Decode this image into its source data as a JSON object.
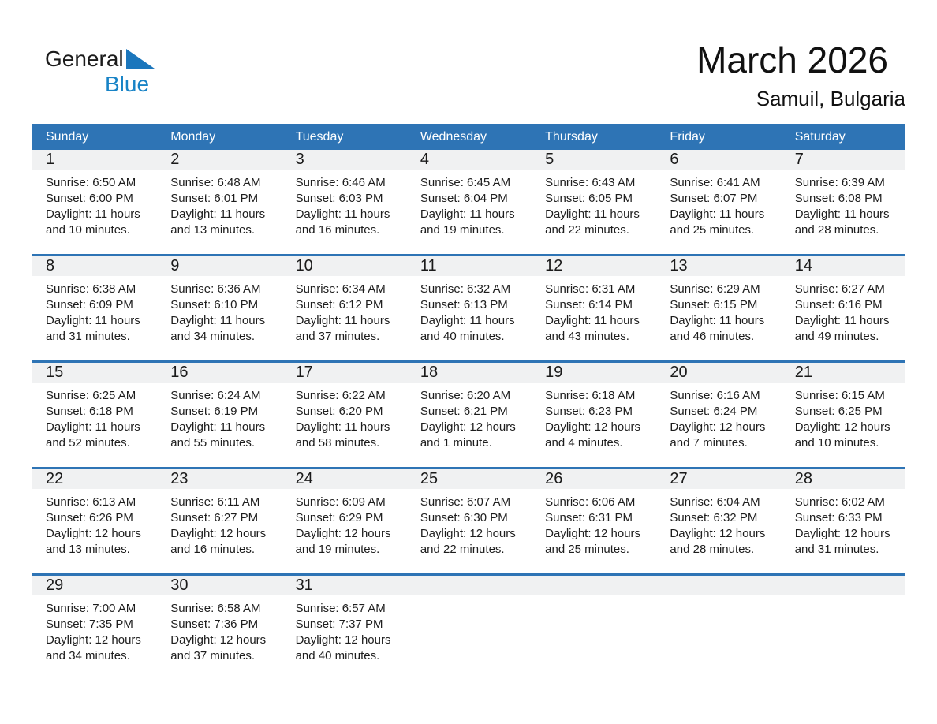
{
  "logo": {
    "general": "General",
    "blue": "Blue"
  },
  "header": {
    "title": "March 2026",
    "subtitle": "Samuil, Bulgaria"
  },
  "colors": {
    "header_blue": "#2E74B5",
    "divider_blue": "#2E74B5",
    "band_gray": "#F0F1F2",
    "logo_blue": "#1883C6",
    "logo_triangle_blue": "#1B76BC"
  },
  "calendar": {
    "day_names": [
      "Sunday",
      "Monday",
      "Tuesday",
      "Wednesday",
      "Thursday",
      "Friday",
      "Saturday"
    ],
    "weeks": [
      [
        {
          "day": "1",
          "sunrise": "Sunrise: 6:50 AM",
          "sunset": "Sunset: 6:00 PM",
          "daylight": "Daylight: 11 hours and 10 minutes."
        },
        {
          "day": "2",
          "sunrise": "Sunrise: 6:48 AM",
          "sunset": "Sunset: 6:01 PM",
          "daylight": "Daylight: 11 hours and 13 minutes."
        },
        {
          "day": "3",
          "sunrise": "Sunrise: 6:46 AM",
          "sunset": "Sunset: 6:03 PM",
          "daylight": "Daylight: 11 hours and 16 minutes."
        },
        {
          "day": "4",
          "sunrise": "Sunrise: 6:45 AM",
          "sunset": "Sunset: 6:04 PM",
          "daylight": "Daylight: 11 hours and 19 minutes."
        },
        {
          "day": "5",
          "sunrise": "Sunrise: 6:43 AM",
          "sunset": "Sunset: 6:05 PM",
          "daylight": "Daylight: 11 hours and 22 minutes."
        },
        {
          "day": "6",
          "sunrise": "Sunrise: 6:41 AM",
          "sunset": "Sunset: 6:07 PM",
          "daylight": "Daylight: 11 hours and 25 minutes."
        },
        {
          "day": "7",
          "sunrise": "Sunrise: 6:39 AM",
          "sunset": "Sunset: 6:08 PM",
          "daylight": "Daylight: 11 hours and 28 minutes."
        }
      ],
      [
        {
          "day": "8",
          "sunrise": "Sunrise: 6:38 AM",
          "sunset": "Sunset: 6:09 PM",
          "daylight": "Daylight: 11 hours and 31 minutes."
        },
        {
          "day": "9",
          "sunrise": "Sunrise: 6:36 AM",
          "sunset": "Sunset: 6:10 PM",
          "daylight": "Daylight: 11 hours and 34 minutes."
        },
        {
          "day": "10",
          "sunrise": "Sunrise: 6:34 AM",
          "sunset": "Sunset: 6:12 PM",
          "daylight": "Daylight: 11 hours and 37 minutes."
        },
        {
          "day": "11",
          "sunrise": "Sunrise: 6:32 AM",
          "sunset": "Sunset: 6:13 PM",
          "daylight": "Daylight: 11 hours and 40 minutes."
        },
        {
          "day": "12",
          "sunrise": "Sunrise: 6:31 AM",
          "sunset": "Sunset: 6:14 PM",
          "daylight": "Daylight: 11 hours and 43 minutes."
        },
        {
          "day": "13",
          "sunrise": "Sunrise: 6:29 AM",
          "sunset": "Sunset: 6:15 PM",
          "daylight": "Daylight: 11 hours and 46 minutes."
        },
        {
          "day": "14",
          "sunrise": "Sunrise: 6:27 AM",
          "sunset": "Sunset: 6:16 PM",
          "daylight": "Daylight: 11 hours and 49 minutes."
        }
      ],
      [
        {
          "day": "15",
          "sunrise": "Sunrise: 6:25 AM",
          "sunset": "Sunset: 6:18 PM",
          "daylight": "Daylight: 11 hours and 52 minutes."
        },
        {
          "day": "16",
          "sunrise": "Sunrise: 6:24 AM",
          "sunset": "Sunset: 6:19 PM",
          "daylight": "Daylight: 11 hours and 55 minutes."
        },
        {
          "day": "17",
          "sunrise": "Sunrise: 6:22 AM",
          "sunset": "Sunset: 6:20 PM",
          "daylight": "Daylight: 11 hours and 58 minutes."
        },
        {
          "day": "18",
          "sunrise": "Sunrise: 6:20 AM",
          "sunset": "Sunset: 6:21 PM",
          "daylight": "Daylight: 12 hours and 1 minute."
        },
        {
          "day": "19",
          "sunrise": "Sunrise: 6:18 AM",
          "sunset": "Sunset: 6:23 PM",
          "daylight": "Daylight: 12 hours and 4 minutes."
        },
        {
          "day": "20",
          "sunrise": "Sunrise: 6:16 AM",
          "sunset": "Sunset: 6:24 PM",
          "daylight": "Daylight: 12 hours and 7 minutes."
        },
        {
          "day": "21",
          "sunrise": "Sunrise: 6:15 AM",
          "sunset": "Sunset: 6:25 PM",
          "daylight": "Daylight: 12 hours and 10 minutes."
        }
      ],
      [
        {
          "day": "22",
          "sunrise": "Sunrise: 6:13 AM",
          "sunset": "Sunset: 6:26 PM",
          "daylight": "Daylight: 12 hours and 13 minutes."
        },
        {
          "day": "23",
          "sunrise": "Sunrise: 6:11 AM",
          "sunset": "Sunset: 6:27 PM",
          "daylight": "Daylight: 12 hours and 16 minutes."
        },
        {
          "day": "24",
          "sunrise": "Sunrise: 6:09 AM",
          "sunset": "Sunset: 6:29 PM",
          "daylight": "Daylight: 12 hours and 19 minutes."
        },
        {
          "day": "25",
          "sunrise": "Sunrise: 6:07 AM",
          "sunset": "Sunset: 6:30 PM",
          "daylight": "Daylight: 12 hours and 22 minutes."
        },
        {
          "day": "26",
          "sunrise": "Sunrise: 6:06 AM",
          "sunset": "Sunset: 6:31 PM",
          "daylight": "Daylight: 12 hours and 25 minutes."
        },
        {
          "day": "27",
          "sunrise": "Sunrise: 6:04 AM",
          "sunset": "Sunset: 6:32 PM",
          "daylight": "Daylight: 12 hours and 28 minutes."
        },
        {
          "day": "28",
          "sunrise": "Sunrise: 6:02 AM",
          "sunset": "Sunset: 6:33 PM",
          "daylight": "Daylight: 12 hours and 31 minutes."
        }
      ],
      [
        {
          "day": "29",
          "sunrise": "Sunrise: 7:00 AM",
          "sunset": "Sunset: 7:35 PM",
          "daylight": "Daylight: 12 hours and 34 minutes."
        },
        {
          "day": "30",
          "sunrise": "Sunrise: 6:58 AM",
          "sunset": "Sunset: 7:36 PM",
          "daylight": "Daylight: 12 hours and 37 minutes."
        },
        {
          "day": "31",
          "sunrise": "Sunrise: 6:57 AM",
          "sunset": "Sunset: 7:37 PM",
          "daylight": "Daylight: 12 hours and 40 minutes."
        },
        null,
        null,
        null,
        null
      ]
    ]
  }
}
